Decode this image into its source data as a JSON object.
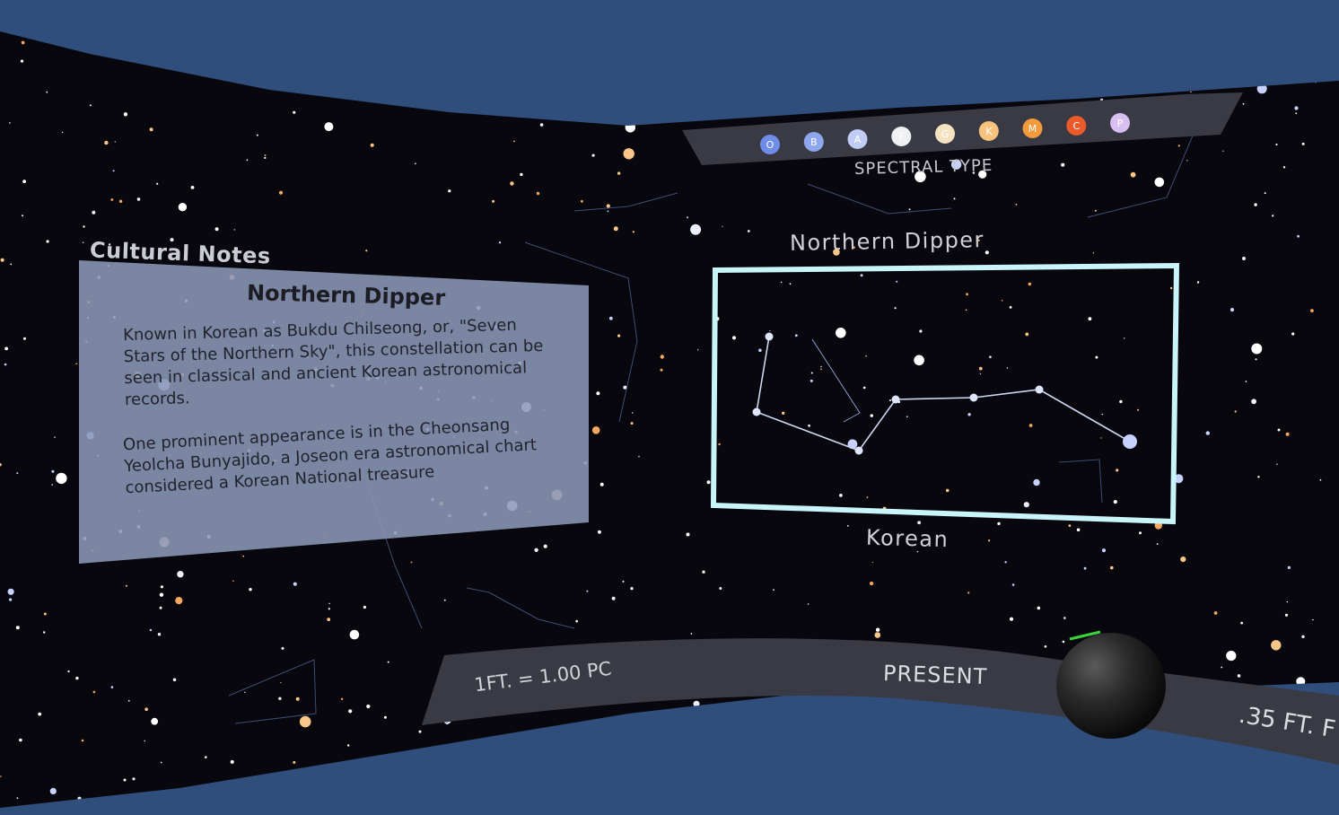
{
  "panel": {
    "title": "Cultural Notes",
    "heading": "Northern Dipper",
    "paragraph1": "Known in Korean as Bukdu Chilseong, or, \"Seven Stars of the Northern Sky\", this constellation can be seen in classical and ancient Korean astronomical records.",
    "paragraph2": "One prominent appearance is in the Cheonsang Yeolcha Bunyajido, a Joseon era astronomical chart considered a Korean National treasure"
  },
  "spectral": {
    "label": "SPECTRAL TYPE",
    "types": [
      {
        "letter": "O",
        "color": "#6f8de8"
      },
      {
        "letter": "B",
        "color": "#8ea6ee"
      },
      {
        "letter": "A",
        "color": "#c2cdf5"
      },
      {
        "letter": "F",
        "color": "#f0f1f4"
      },
      {
        "letter": "G",
        "color": "#f5e2c0"
      },
      {
        "letter": "K",
        "color": "#f6c27e"
      },
      {
        "letter": "M",
        "color": "#f39a3c"
      },
      {
        "letter": "C",
        "color": "#ea5a2a"
      },
      {
        "letter": "P",
        "color": "#d7bff0"
      }
    ]
  },
  "constellation": {
    "name": "Northern Dipper",
    "culture": "Korean"
  },
  "footer": {
    "scale": "1FT. = 1.00 PC",
    "time": "PRESENT",
    "distance": ".35 FT. F"
  },
  "colors": {
    "background": "#2f4e7b",
    "sky": "#07070d",
    "panel": "#8c98b8",
    "highlight": "#c8f4fa"
  },
  "icons": {
    "sphere": "view-sphere-icon"
  }
}
